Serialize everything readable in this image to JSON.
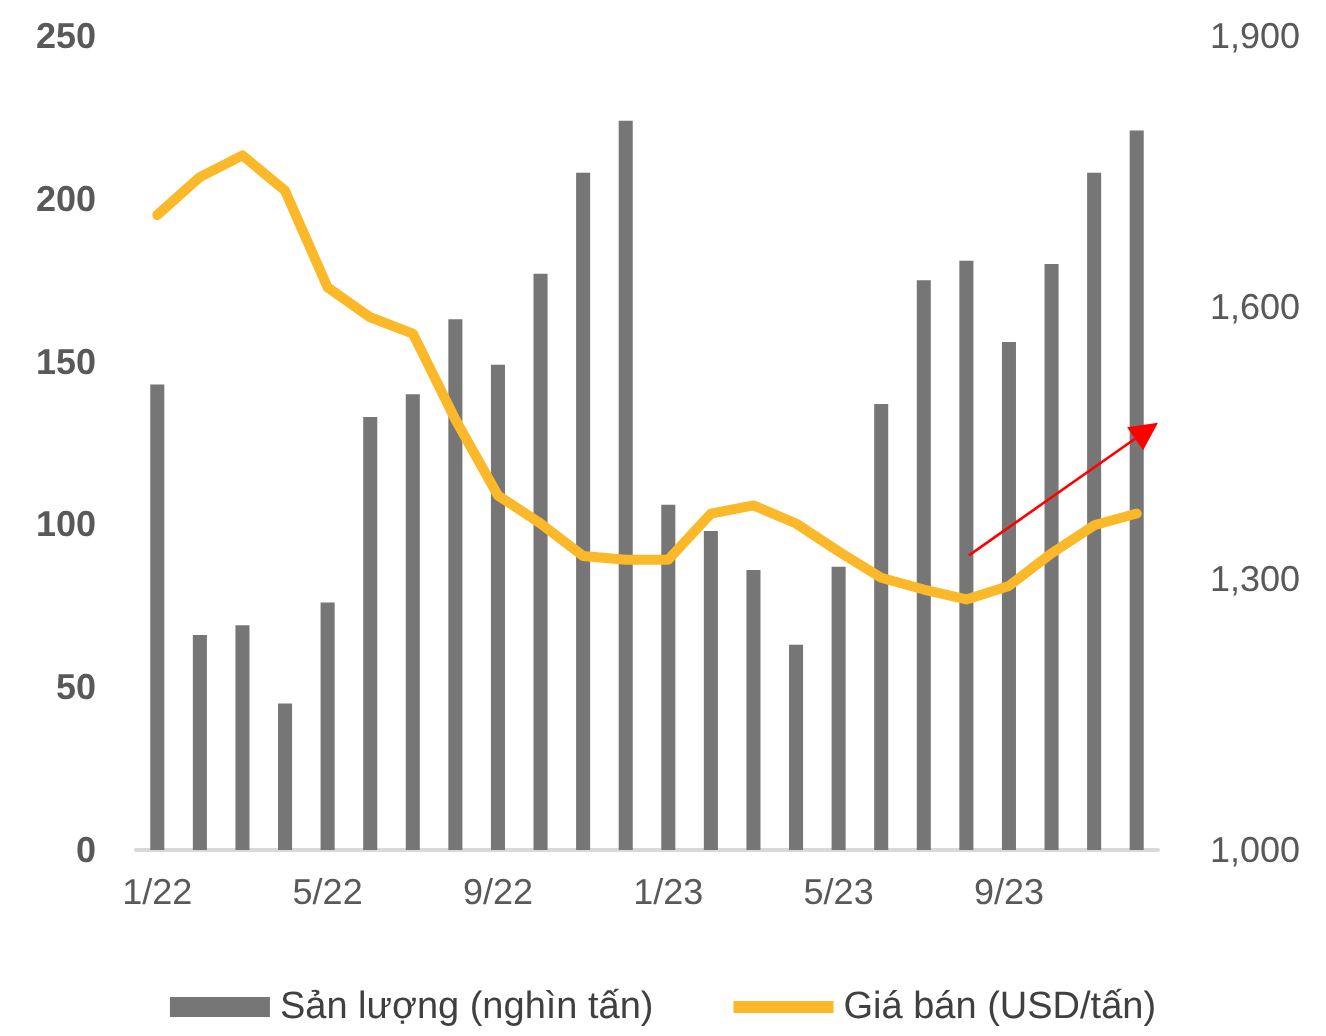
{
  "chart_data": {
    "type": "bar",
    "categories": [
      "1/22",
      null,
      null,
      null,
      "5/22",
      null,
      null,
      null,
      "9/22",
      null,
      null,
      null,
      "1/23",
      null,
      null,
      null,
      "5/23",
      null,
      null,
      null,
      "9/23",
      null,
      null,
      null
    ],
    "series": [
      {
        "name": "Sản lượng (nghìn tấn)",
        "color": "#767676",
        "values": [
          143,
          66,
          69,
          45,
          76,
          133,
          140,
          163,
          149,
          177,
          208,
          224,
          106,
          98,
          86,
          63,
          87,
          137,
          175,
          181,
          156,
          180,
          208,
          221
        ]
      },
      {
        "name": "Giá bán (USD/tấn)",
        "type": "line",
        "axis": "y2",
        "color": "#fbb829",
        "values": [
          1702,
          1744,
          1768,
          1729,
          1622,
          1589,
          1571,
          1476,
          1392,
          1361,
          1325,
          1321,
          1321,
          1372,
          1381,
          1361,
          1330,
          1301,
          1288,
          1277,
          1292,
          1328,
          1359,
          1372
        ]
      }
    ],
    "ylim": [
      0,
      250
    ],
    "yticks": [
      0,
      50,
      100,
      150,
      200,
      250
    ],
    "y2lim": [
      1000,
      1900
    ],
    "y2ticks": [
      {
        "value": 1000,
        "label": "1,000"
      },
      {
        "value": 1300,
        "label": "1,300"
      },
      {
        "value": 1600,
        "label": "1,600"
      },
      {
        "value": 1900,
        "label": "1,900"
      }
    ],
    "grid": false,
    "legend": "bottom",
    "marker": "none",
    "line_style": "solid"
  }
}
